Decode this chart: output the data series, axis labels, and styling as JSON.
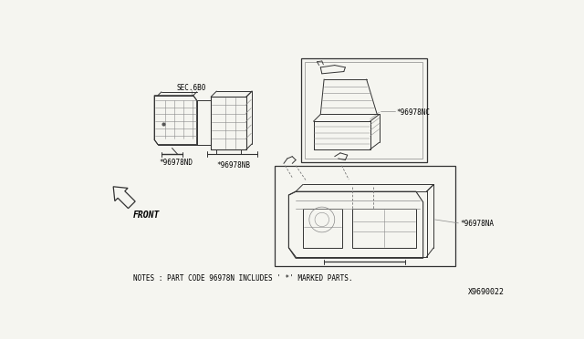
{
  "bg_color": "#f5f5f0",
  "border_color": "#000000",
  "text_color": "#000000",
  "fig_width": 6.4,
  "fig_height": 3.72,
  "dpi": 100,
  "notes_text": "NOTES : PART CODE 96978N INCLUDES ' *' MARKED PARTS.",
  "part_id": "X9690022",
  "labels": {
    "sec680": "SEC.6B0",
    "nb": "*96978NB",
    "nd": "*96978ND",
    "nc": "*96978NC",
    "na": "*96978NA"
  },
  "front_label": "FRONT"
}
